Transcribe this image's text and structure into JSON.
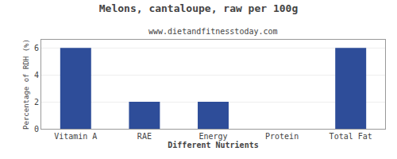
{
  "chart_data": {
    "type": "bar",
    "title": "Melons, cantaloupe, raw per 100g",
    "subtitle": "www.dietandfitnesstoday.com",
    "xlabel": "Different Nutrients",
    "ylabel": "Percentage of RDH (%)",
    "categories": [
      "Vitamin A",
      "RAE",
      "Energy",
      "Protein",
      "Total Fat"
    ],
    "values": [
      6.0,
      2.0,
      2.0,
      0.0,
      6.0
    ],
    "color": "#2e4d99",
    "ylim": [
      0,
      6.6
    ],
    "yticks": [
      0,
      2,
      4,
      6
    ],
    "grid": true
  }
}
